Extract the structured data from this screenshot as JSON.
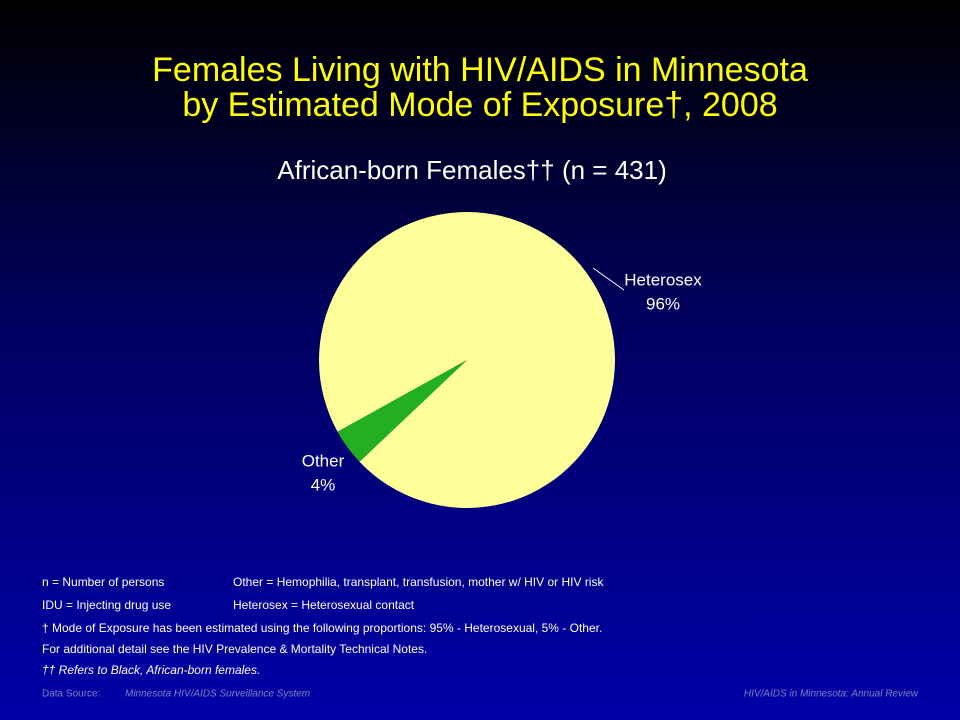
{
  "chart_data": {
    "type": "pie",
    "title": [
      "Females Living with HIV/AIDS in Minnesota",
      "by Estimated Mode of Exposure†, 2008"
    ],
    "subtitle": "African-born Females†† (n = 431)",
    "categories": [
      "Heterosex",
      "Other"
    ],
    "values": [
      96,
      4
    ],
    "value_labels": [
      "96%",
      "4%"
    ],
    "colors": [
      "#ffff99",
      "#22b022"
    ]
  },
  "notes": {
    "definitions": [
      [
        "n = Number of persons",
        "Other = Hemophilia, transplant, transfusion, mother w/ HIV or HIV risk"
      ],
      [
        "IDU = Injecting drug use",
        "Heterosex = Heterosexual contact"
      ]
    ],
    "footnotes": [
      "† Mode of Exposure has been estimated using the following proportions: 95% - Heterosexual, 5% - Other.",
      "For additional detail see the HIV Prevalence & Mortality Technical Notes.",
      "†† Refers to Black, African-born females."
    ]
  },
  "footer": {
    "source_label": "Data Source:",
    "source": "Minnesota HIV/AIDS Surveillance System",
    "right": "HIV/AIDS in Minnesota: Annual Review"
  }
}
